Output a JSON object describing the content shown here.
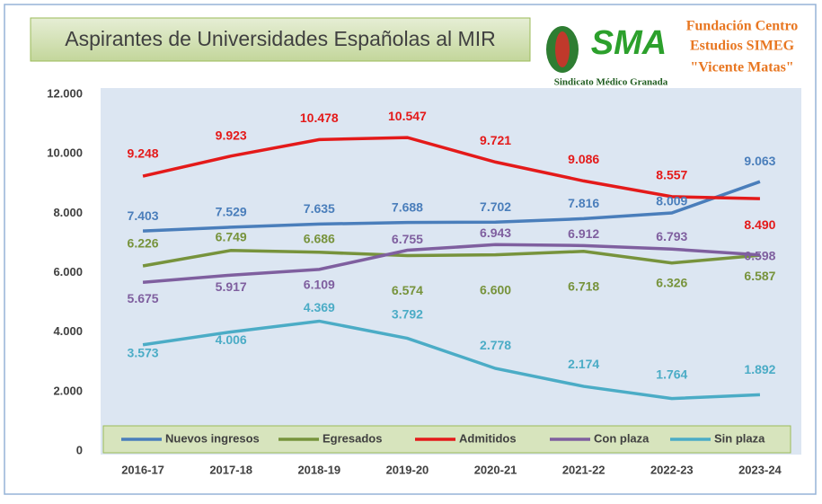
{
  "chart_data": {
    "type": "line",
    "title": "Aspirantes de Universidades Españolas al MIR",
    "logo": {
      "acronym": "SMA",
      "union": "Sindicato Médico Granada",
      "foundation": [
        "Fundación Centro",
        "Estudios SIMEG",
        "\"Vicente Matas\""
      ]
    },
    "categories": [
      "2016-17",
      "2017-18",
      "2018-19",
      "2019-20",
      "2020-21",
      "2021-22",
      "2022-23",
      "2023-24"
    ],
    "ylim": [
      0,
      12000
    ],
    "yticks": [
      0,
      {
        "value": 2000,
        "label": "2.000"
      },
      {
        "value": 4000,
        "label": "4.000"
      },
      {
        "value": 6000,
        "label": "6.000"
      },
      {
        "value": 8000,
        "label": "8.000"
      },
      {
        "value": 10000,
        "label": "10.000"
      },
      {
        "value": 12000,
        "label": "12.000"
      }
    ],
    "grid": false,
    "legend": "bottom",
    "series": [
      {
        "name": "Nuevos ingresos",
        "color": "#4a7ebb",
        "values": [
          7403,
          7529,
          7635,
          7688,
          7702,
          7816,
          8009,
          9063
        ],
        "value_labels": [
          "7.403",
          "7.529",
          "7.635",
          "7.688",
          "7.702",
          "7.816",
          "8.009",
          "9.063"
        ]
      },
      {
        "name": "Egresados",
        "color": "#77933c",
        "values": [
          6226,
          6749,
          6686,
          6574,
          6600,
          6718,
          6326,
          6587
        ],
        "value_labels": [
          "6.226",
          "6.749",
          "6.686",
          "6.574",
          "6.600",
          "6.718",
          "6.326",
          "6.587"
        ]
      },
      {
        "name": "Admitidos",
        "color": "#e41a1a",
        "values": [
          9248,
          9923,
          10478,
          10547,
          9721,
          9086,
          8557,
          8490
        ],
        "value_labels": [
          "9.248",
          "9.923",
          "10.478",
          "10.547",
          "9.721",
          "9.086",
          "8.557",
          "8.490"
        ]
      },
      {
        "name": "Con plaza",
        "color": "#7f5f9f",
        "values": [
          5675,
          5917,
          6109,
          6755,
          6943,
          6912,
          6793,
          6598
        ],
        "value_labels": [
          "5.675",
          "5.917",
          "6.109",
          "6.755",
          "6.943",
          "6.912",
          "6.793",
          "6.598"
        ]
      },
      {
        "name": "Sin plaza",
        "color": "#4bacc6",
        "values": [
          3573,
          4006,
          4369,
          3792,
          2778,
          2174,
          1764,
          1892
        ],
        "value_labels": [
          "3.573",
          "4.006",
          "4.369",
          "3.792",
          "2.778",
          "2.174",
          "1.764",
          "1.892"
        ]
      }
    ]
  }
}
